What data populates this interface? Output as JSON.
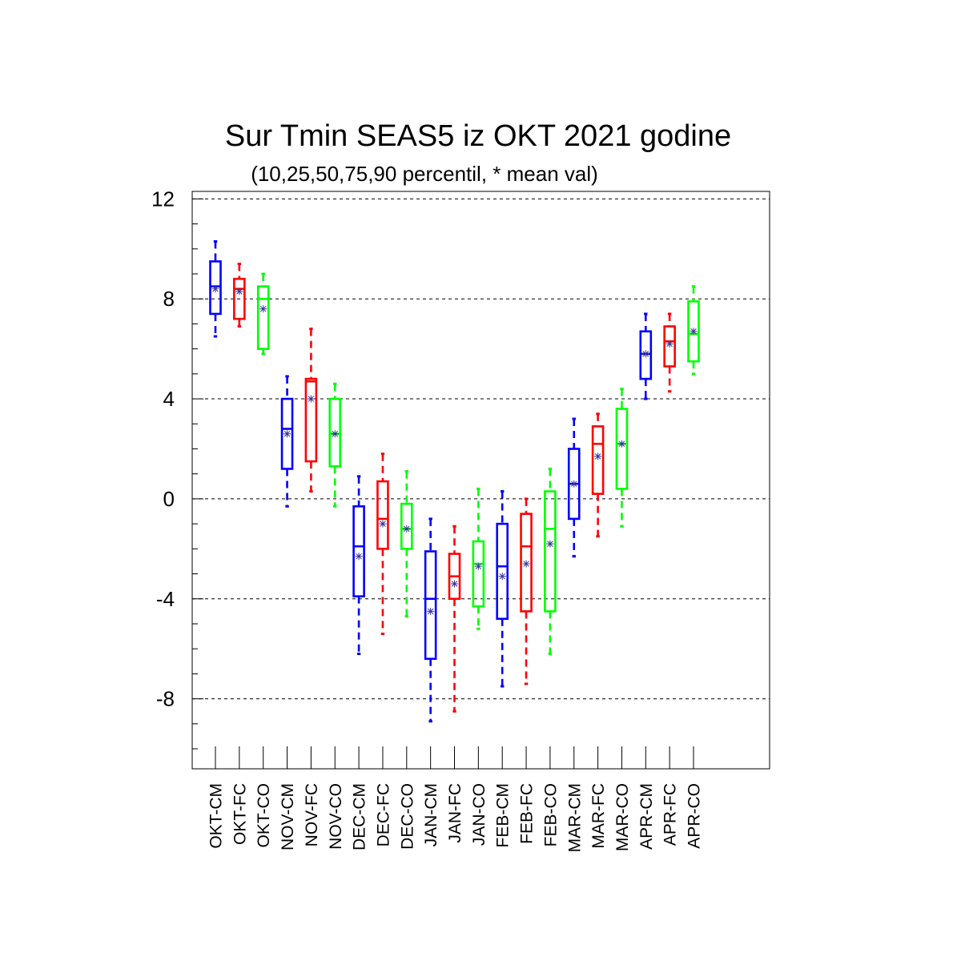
{
  "chart_data": {
    "type": "boxplot",
    "title": "Sur Tmin SEAS5 iz OKT 2021 godine",
    "subtitle": "(10,25,50,75,90 percentil, * mean val)",
    "ylim": [
      -10.8,
      12.3
    ],
    "yticks": [
      "12",
      "8",
      "4",
      "0",
      "-4",
      "-8"
    ],
    "ytick_values": [
      12,
      8,
      4,
      0,
      -4,
      -8
    ],
    "grid": "dashed horizontal at major ticks",
    "colors": {
      "CM": "#0000ff",
      "FC": "#ff0000",
      "CO": "#00ff00"
    },
    "categories": [
      "OKT-CM",
      "OKT-FC",
      "OKT-CO",
      "NOV-CM",
      "NOV-FC",
      "NOV-CO",
      "DEC-CM",
      "DEC-FC",
      "DEC-CO",
      "JAN-CM",
      "JAN-FC",
      "JAN-CO",
      "FEB-CM",
      "FEB-FC",
      "FEB-CO",
      "MAR-CM",
      "MAR-FC",
      "MAR-CO",
      "APR-CM",
      "APR-FC",
      "APR-CO"
    ],
    "boxes": [
      {
        "label": "OKT-CM",
        "series": "CM",
        "p10": 6.5,
        "p25": 7.4,
        "p50": 8.5,
        "p75": 9.5,
        "p90": 10.3,
        "mean": 8.4
      },
      {
        "label": "OKT-FC",
        "series": "FC",
        "p10": 6.9,
        "p25": 7.2,
        "p50": 8.4,
        "p75": 8.8,
        "p90": 9.4,
        "mean": 8.3
      },
      {
        "label": "OKT-CO",
        "series": "CO",
        "p10": 5.8,
        "p25": 6.0,
        "p50": 8.0,
        "p75": 8.5,
        "p90": 9.0,
        "mean": 7.6
      },
      {
        "label": "NOV-CM",
        "series": "CM",
        "p10": -0.3,
        "p25": 1.2,
        "p50": 2.8,
        "p75": 4.0,
        "p90": 4.9,
        "mean": 2.6
      },
      {
        "label": "NOV-FC",
        "series": "FC",
        "p10": 0.3,
        "p25": 1.5,
        "p50": 4.7,
        "p75": 4.8,
        "p90": 6.8,
        "mean": 4.0
      },
      {
        "label": "NOV-CO",
        "series": "CO",
        "p10": -0.3,
        "p25": 1.3,
        "p50": 2.6,
        "p75": 4.0,
        "p90": 4.6,
        "mean": 2.6
      },
      {
        "label": "DEC-CM",
        "series": "CM",
        "p10": -6.2,
        "p25": -3.9,
        "p50": -1.9,
        "p75": -0.3,
        "p90": 0.9,
        "mean": -2.3
      },
      {
        "label": "DEC-FC",
        "series": "FC",
        "p10": -5.4,
        "p25": -2.0,
        "p50": -0.8,
        "p75": 0.7,
        "p90": 1.8,
        "mean": -1.0
      },
      {
        "label": "DEC-CO",
        "series": "CO",
        "p10": -4.7,
        "p25": -2.0,
        "p50": -1.2,
        "p75": -0.2,
        "p90": 1.1,
        "mean": -1.2
      },
      {
        "label": "JAN-CM",
        "series": "CM",
        "p10": -8.9,
        "p25": -6.4,
        "p50": -4.0,
        "p75": -2.1,
        "p90": -0.8,
        "mean": -4.5
      },
      {
        "label": "JAN-FC",
        "series": "FC",
        "p10": -8.5,
        "p25": -4.0,
        "p50": -3.1,
        "p75": -2.2,
        "p90": -1.1,
        "mean": -3.4
      },
      {
        "label": "JAN-CO",
        "series": "CO",
        "p10": -5.2,
        "p25": -4.3,
        "p50": -2.6,
        "p75": -1.7,
        "p90": 0.4,
        "mean": -2.7
      },
      {
        "label": "FEB-CM",
        "series": "CM",
        "p10": -7.5,
        "p25": -4.8,
        "p50": -2.7,
        "p75": -1.0,
        "p90": 0.3,
        "mean": -3.1
      },
      {
        "label": "FEB-FC",
        "series": "FC",
        "p10": -7.4,
        "p25": -4.5,
        "p50": -1.9,
        "p75": -0.6,
        "p90": 0.0,
        "mean": -2.6
      },
      {
        "label": "FEB-CO",
        "series": "CO",
        "p10": -6.2,
        "p25": -4.5,
        "p50": -1.2,
        "p75": 0.3,
        "p90": 1.2,
        "mean": -1.8
      },
      {
        "label": "MAR-CM",
        "series": "CM",
        "p10": -2.3,
        "p25": -0.8,
        "p50": 0.6,
        "p75": 2.0,
        "p90": 3.2,
        "mean": 0.6
      },
      {
        "label": "MAR-FC",
        "series": "FC",
        "p10": -1.5,
        "p25": 0.2,
        "p50": 2.2,
        "p75": 2.9,
        "p90": 3.4,
        "mean": 1.7
      },
      {
        "label": "MAR-CO",
        "series": "CO",
        "p10": -1.1,
        "p25": 0.4,
        "p50": 2.2,
        "p75": 3.6,
        "p90": 4.4,
        "mean": 2.2
      },
      {
        "label": "APR-CM",
        "series": "CM",
        "p10": 4.0,
        "p25": 4.8,
        "p50": 5.8,
        "p75": 6.7,
        "p90": 7.4,
        "mean": 5.8
      },
      {
        "label": "APR-FC",
        "series": "FC",
        "p10": 4.3,
        "p25": 5.3,
        "p50": 6.3,
        "p75": 6.9,
        "p90": 7.4,
        "mean": 6.2
      },
      {
        "label": "APR-CO",
        "series": "CO",
        "p10": 5.0,
        "p25": 5.5,
        "p50": 6.6,
        "p75": 7.9,
        "p90": 8.5,
        "mean": 6.7
      }
    ]
  }
}
